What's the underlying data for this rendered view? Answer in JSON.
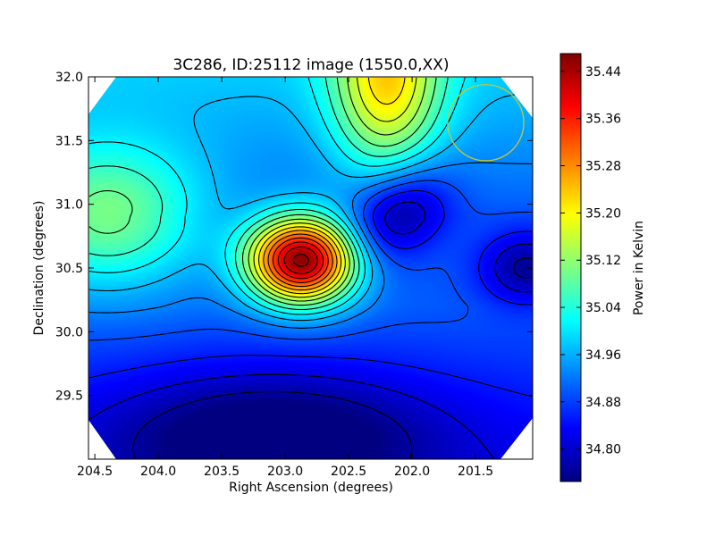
{
  "chart_data": {
    "type": "heatmap",
    "title": "3C286, ID:25112 image (1550.0,XX)",
    "xlabel": "Right Ascension (degrees)",
    "ylabel": "Declination (degrees)",
    "xlim": [
      204.55,
      201.05
    ],
    "ylim": [
      29.0,
      32.0
    ],
    "x_ticks": [
      "204.5",
      "204.0",
      "203.5",
      "203.0",
      "202.5",
      "202.0",
      "201.5"
    ],
    "x_tick_values": [
      204.5,
      204.0,
      203.5,
      203.0,
      202.5,
      202.0,
      201.5
    ],
    "y_ticks": [
      "32.0",
      "31.5",
      "31.0",
      "30.5",
      "30.0",
      "29.5"
    ],
    "y_tick_values": [
      32.0,
      31.5,
      31.0,
      30.5,
      30.0,
      29.5
    ],
    "colorbar": {
      "label": "Power in Kelvin",
      "range": [
        34.745,
        35.47
      ],
      "ticks": [
        "35.44",
        "35.36",
        "35.28",
        "35.20",
        "35.12",
        "35.04",
        "34.96",
        "34.88",
        "34.80"
      ],
      "tick_values": [
        35.44,
        35.36,
        35.28,
        35.2,
        35.12,
        35.04,
        34.96,
        34.88,
        34.8
      ],
      "colormap": "jet"
    },
    "features": [
      {
        "kind": "peak",
        "ra": 202.87,
        "dec": 30.56,
        "value": 35.46
      },
      {
        "kind": "trough",
        "ra": 202.1,
        "dec": 30.93,
        "value": 34.75
      },
      {
        "kind": "trough",
        "ra": 201.1,
        "dec": 30.5,
        "value": 34.76
      },
      {
        "kind": "trough",
        "ra": 203.1,
        "dec": 29.2,
        "value": 34.76
      },
      {
        "kind": "plateau",
        "ra": 202.2,
        "dec": 31.95,
        "value": 35.16
      },
      {
        "kind": "plateau",
        "ra": 204.4,
        "dec": 30.9,
        "value": 35.1
      }
    ],
    "beam_circle": {
      "ra": 201.42,
      "dec": 31.64,
      "radius_deg": 0.3,
      "color": "#c8c832"
    },
    "contour_color": "#000000"
  }
}
